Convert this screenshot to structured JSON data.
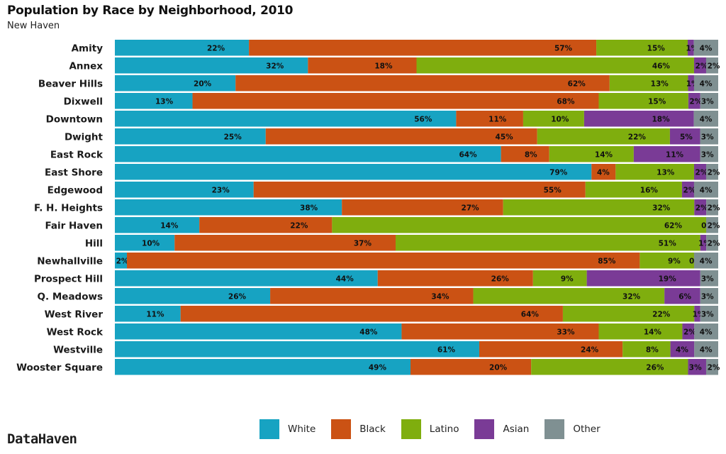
{
  "header": {
    "title": "Population by Race by Neighborhood, 2010",
    "subtitle": "New Haven"
  },
  "footer": {
    "brand": "DataHaven"
  },
  "colors": {
    "White": "#17a3c2",
    "Black": "#cb5214",
    "Latino": "#7fae0e",
    "Asian": "#7a3b96",
    "Other": "#7f9092"
  },
  "legend": {
    "items": [
      {
        "label": "White",
        "color": "#17a3c2"
      },
      {
        "label": "Black",
        "color": "#cb5214"
      },
      {
        "label": "Latino",
        "color": "#7fae0e"
      },
      {
        "label": "Asian",
        "color": "#7a3b96"
      },
      {
        "label": "Other",
        "color": "#7f9092"
      }
    ],
    "placement": "bottom"
  },
  "chart_data": {
    "type": "bar",
    "orientation": "horizontal",
    "stacked": "percent",
    "title": "Population by Race by Neighborhood, 2010",
    "subtitle": "New Haven",
    "xlabel": "",
    "ylabel": "",
    "xlim": [
      0,
      100
    ],
    "grid": false,
    "categories": [
      "Amity",
      "Annex",
      "Beaver Hills",
      "Dixwell",
      "Downtown",
      "Dwight",
      "East Rock",
      "East Shore",
      "Edgewood",
      "F. H. Heights",
      "Fair Haven",
      "Hill",
      "Newhallville",
      "Prospect Hill",
      "Q. Meadows",
      "West River",
      "West Rock",
      "Westville",
      "Wooster Square"
    ],
    "series": [
      {
        "name": "White",
        "values": [
          22,
          32,
          20,
          13,
          56,
          25,
          64,
          79,
          23,
          38,
          14,
          10,
          2,
          44,
          26,
          11,
          48,
          61,
          49
        ]
      },
      {
        "name": "Black",
        "values": [
          57,
          18,
          62,
          68,
          11,
          45,
          8,
          4,
          55,
          27,
          22,
          37,
          85,
          26,
          34,
          64,
          33,
          24,
          20
        ]
      },
      {
        "name": "Latino",
        "values": [
          15,
          46,
          13,
          15,
          10,
          22,
          14,
          13,
          16,
          32,
          62,
          51,
          9,
          9,
          32,
          22,
          14,
          8,
          26
        ]
      },
      {
        "name": "Asian",
        "values": [
          1,
          2,
          1,
          2,
          18,
          5,
          11,
          2,
          2,
          2,
          0,
          1,
          0,
          19,
          6,
          1,
          2,
          4,
          3
        ]
      },
      {
        "name": "Other",
        "values": [
          4,
          2,
          4,
          3,
          4,
          3,
          3,
          2,
          4,
          2,
          2,
          2,
          4,
          3,
          3,
          3,
          4,
          4,
          2
        ]
      }
    ],
    "data_label_suffix": "%"
  }
}
